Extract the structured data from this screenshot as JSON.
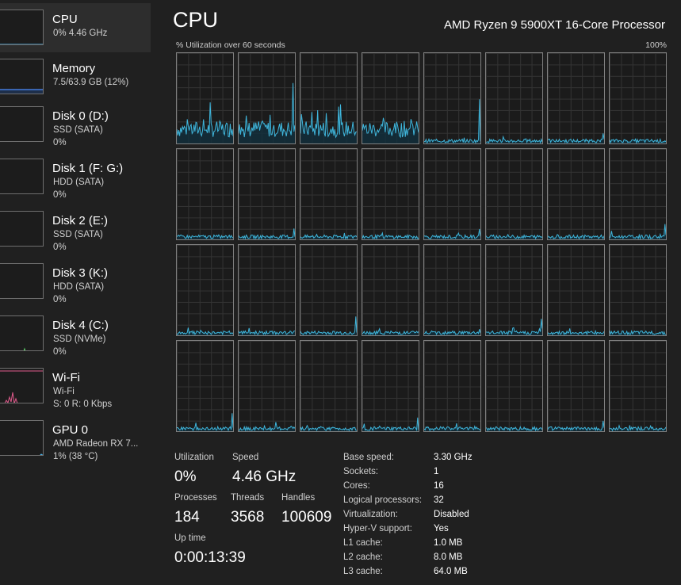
{
  "sidebar": {
    "items": [
      {
        "title": "CPU",
        "line1": "0% 4.46 GHz",
        "line2": "",
        "selected": true,
        "color": "#4cc2ff"
      },
      {
        "title": "Memory",
        "line1": "7.5/63.9 GB (12%)",
        "line2": "",
        "selected": false,
        "color": "#4c8cff"
      },
      {
        "title": "Disk 0 (D:)",
        "line1": "SSD (SATA)",
        "line2": "0%",
        "selected": false,
        "color": "#5fd068"
      },
      {
        "title": "Disk 1 (F: G:)",
        "line1": "HDD (SATA)",
        "line2": "0%",
        "selected": false,
        "color": "#5fd068"
      },
      {
        "title": "Disk 2 (E:)",
        "line1": "SSD (SATA)",
        "line2": "0%",
        "selected": false,
        "color": "#5fd068"
      },
      {
        "title": "Disk 3 (K:)",
        "line1": "HDD (SATA)",
        "line2": "0%",
        "selected": false,
        "color": "#5fd068"
      },
      {
        "title": "Disk 4 (C:)",
        "line1": "SSD (NVMe)",
        "line2": "0%",
        "selected": false,
        "color": "#5fd068"
      },
      {
        "title": "Wi-Fi",
        "line1": "Wi-Fi",
        "line2": "S: 0 R: 0 Kbps",
        "selected": false,
        "color": "#e05a8c"
      },
      {
        "title": "GPU 0",
        "line1": "AMD Radeon RX 7...",
        "line2": "1% (38 °C)",
        "selected": false,
        "color": "#4cc2ff"
      }
    ]
  },
  "header": {
    "title": "CPU",
    "model": "AMD Ryzen 9 5900XT 16-Core Processor",
    "graph_caption": "% Utilization over 60 seconds",
    "graph_max": "100%"
  },
  "colors": {
    "graph_line": "#3fb6dc",
    "graph_fill": "#11303d",
    "background": "#202020"
  },
  "stats": {
    "utilization_label": "Utilization",
    "utilization": "0%",
    "speed_label": "Speed",
    "speed": "4.46 GHz",
    "processes_label": "Processes",
    "processes": "184",
    "threads_label": "Threads",
    "threads": "3568",
    "handles_label": "Handles",
    "handles": "100609",
    "uptime_label": "Up time",
    "uptime": "0:00:13:39"
  },
  "specs": [
    {
      "label": "Base speed:",
      "value": "3.30 GHz"
    },
    {
      "label": "Sockets:",
      "value": "1"
    },
    {
      "label": "Cores:",
      "value": "16"
    },
    {
      "label": "Logical processors:",
      "value": "32"
    },
    {
      "label": "Virtualization:",
      "value": "Disabled"
    },
    {
      "label": "Hyper-V support:",
      "value": "Yes"
    },
    {
      "label": "L1 cache:",
      "value": "1.0 MB"
    },
    {
      "label": "L2 cache:",
      "value": "8.0 MB"
    },
    {
      "label": "L3 cache:",
      "value": "64.0 MB"
    }
  ]
}
